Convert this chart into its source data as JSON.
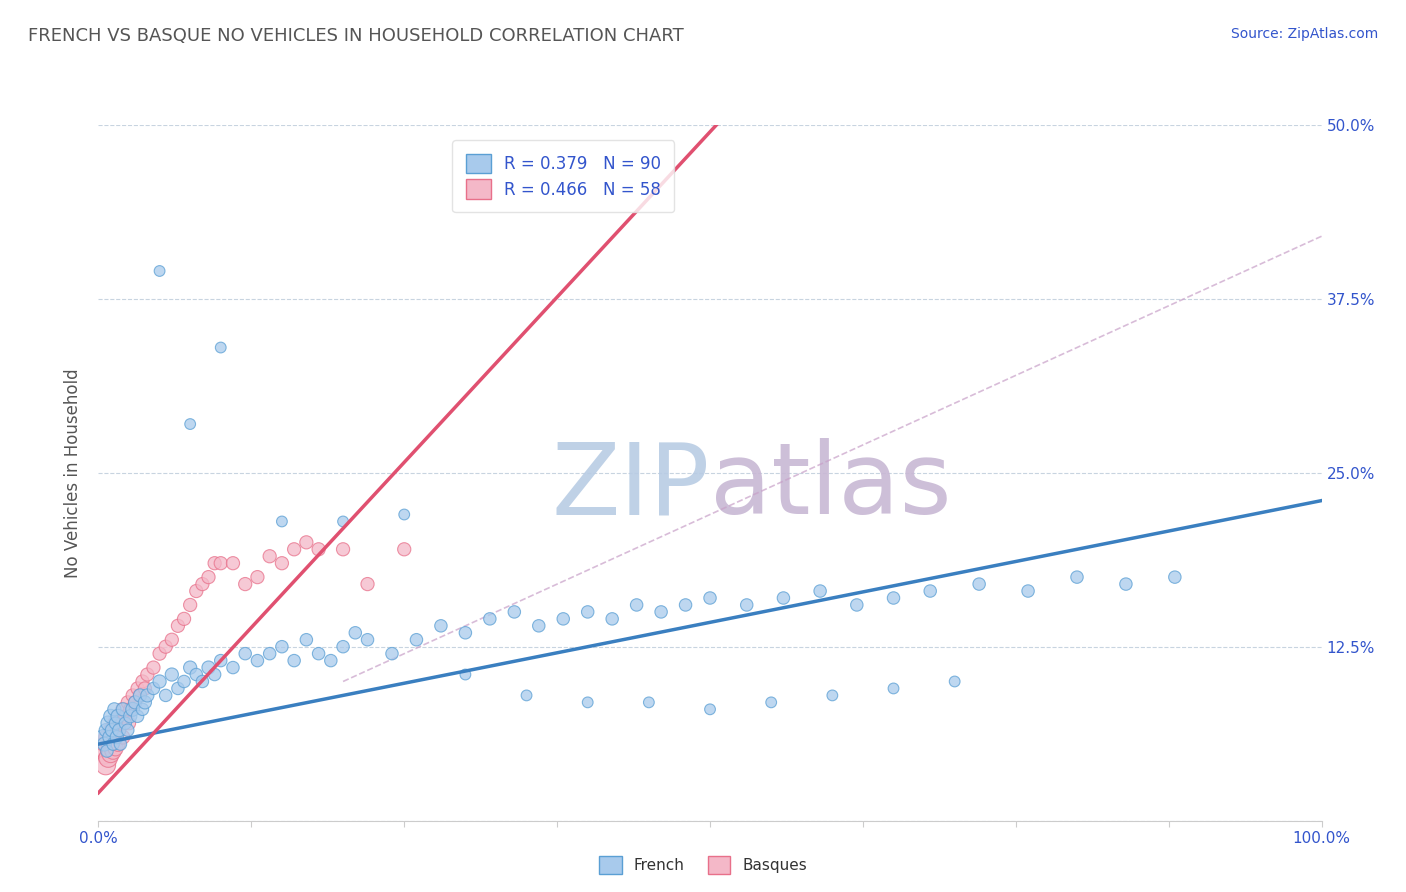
{
  "title": "FRENCH VS BASQUE NO VEHICLES IN HOUSEHOLD CORRELATION CHART",
  "source_text": "Source: ZipAtlas.com",
  "ylabel": "No Vehicles in Household",
  "xlim": [
    0,
    1.0
  ],
  "ylim": [
    0,
    0.5
  ],
  "xticks": [
    0,
    0.125,
    0.25,
    0.375,
    0.5,
    0.625,
    0.75,
    0.875,
    1.0
  ],
  "xticklabels": [
    "0.0%",
    "",
    "",
    "",
    "",
    "",
    "",
    "",
    "100.0%"
  ],
  "ytick_positions": [
    0,
    0.125,
    0.25,
    0.375,
    0.5
  ],
  "yticklabels_right": [
    "",
    "12.5%",
    "25.0%",
    "37.5%",
    "50.0%"
  ],
  "french_R": 0.379,
  "french_N": 90,
  "basque_R": 0.466,
  "basque_N": 58,
  "french_color": "#a8caec",
  "basque_color": "#f4b8c8",
  "french_edge_color": "#5a9fd4",
  "basque_edge_color": "#e8708a",
  "french_line_color": "#3a7fc0",
  "basque_line_color": "#e05070",
  "dash_line_color": "#c8b8d0",
  "legend_text_color": "#3355cc",
  "title_color": "#555555",
  "watermark": "ZIPatlas",
  "watermark_color_zip": "#b8d0e8",
  "watermark_color_atlas": "#c8c0d8",
  "french_x": [
    0.004,
    0.005,
    0.006,
    0.007,
    0.008,
    0.009,
    0.01,
    0.011,
    0.012,
    0.013,
    0.014,
    0.015,
    0.016,
    0.017,
    0.018,
    0.02,
    0.022,
    0.024,
    0.026,
    0.028,
    0.03,
    0.032,
    0.034,
    0.036,
    0.038,
    0.04,
    0.045,
    0.05,
    0.055,
    0.06,
    0.065,
    0.07,
    0.075,
    0.08,
    0.085,
    0.09,
    0.095,
    0.1,
    0.11,
    0.12,
    0.13,
    0.14,
    0.15,
    0.16,
    0.17,
    0.18,
    0.19,
    0.2,
    0.21,
    0.22,
    0.24,
    0.26,
    0.28,
    0.3,
    0.32,
    0.34,
    0.36,
    0.38,
    0.4,
    0.42,
    0.44,
    0.46,
    0.48,
    0.5,
    0.53,
    0.56,
    0.59,
    0.62,
    0.65,
    0.68,
    0.72,
    0.76,
    0.8,
    0.84,
    0.88,
    0.05,
    0.075,
    0.1,
    0.15,
    0.2,
    0.25,
    0.3,
    0.35,
    0.4,
    0.45,
    0.5,
    0.55,
    0.6,
    0.65,
    0.7
  ],
  "french_y": [
    0.06,
    0.055,
    0.065,
    0.05,
    0.07,
    0.06,
    0.075,
    0.065,
    0.055,
    0.08,
    0.07,
    0.06,
    0.075,
    0.065,
    0.055,
    0.08,
    0.07,
    0.065,
    0.075,
    0.08,
    0.085,
    0.075,
    0.09,
    0.08,
    0.085,
    0.09,
    0.095,
    0.1,
    0.09,
    0.105,
    0.095,
    0.1,
    0.11,
    0.105,
    0.1,
    0.11,
    0.105,
    0.115,
    0.11,
    0.12,
    0.115,
    0.12,
    0.125,
    0.115,
    0.13,
    0.12,
    0.115,
    0.125,
    0.135,
    0.13,
    0.12,
    0.13,
    0.14,
    0.135,
    0.145,
    0.15,
    0.14,
    0.145,
    0.15,
    0.145,
    0.155,
    0.15,
    0.155,
    0.16,
    0.155,
    0.16,
    0.165,
    0.155,
    0.16,
    0.165,
    0.17,
    0.165,
    0.175,
    0.17,
    0.175,
    0.395,
    0.285,
    0.34,
    0.215,
    0.215,
    0.22,
    0.105,
    0.09,
    0.085,
    0.085,
    0.08,
    0.085,
    0.09,
    0.095,
    0.1
  ],
  "french_sizes": [
    120,
    100,
    90,
    80,
    110,
    90,
    100,
    90,
    80,
    90,
    80,
    90,
    100,
    90,
    80,
    90,
    80,
    80,
    90,
    100,
    90,
    80,
    90,
    80,
    90,
    90,
    80,
    90,
    80,
    90,
    80,
    80,
    90,
    80,
    80,
    90,
    80,
    80,
    80,
    80,
    80,
    80,
    80,
    80,
    80,
    80,
    80,
    80,
    80,
    80,
    80,
    80,
    80,
    80,
    80,
    80,
    80,
    80,
    80,
    80,
    80,
    80,
    80,
    80,
    80,
    80,
    80,
    80,
    80,
    80,
    80,
    80,
    80,
    80,
    80,
    60,
    60,
    60,
    60,
    60,
    60,
    60,
    60,
    60,
    60,
    60,
    60,
    60,
    60,
    60
  ],
  "basque_x": [
    0.003,
    0.004,
    0.005,
    0.006,
    0.007,
    0.008,
    0.009,
    0.01,
    0.011,
    0.012,
    0.013,
    0.014,
    0.015,
    0.016,
    0.017,
    0.018,
    0.02,
    0.022,
    0.024,
    0.026,
    0.028,
    0.03,
    0.032,
    0.034,
    0.036,
    0.038,
    0.04,
    0.045,
    0.05,
    0.055,
    0.06,
    0.065,
    0.07,
    0.075,
    0.08,
    0.085,
    0.09,
    0.095,
    0.1,
    0.11,
    0.12,
    0.13,
    0.14,
    0.15,
    0.16,
    0.17,
    0.18,
    0.2,
    0.22,
    0.25,
    0.006,
    0.008,
    0.01,
    0.012,
    0.014,
    0.016,
    0.02,
    0.025
  ],
  "basque_y": [
    0.05,
    0.055,
    0.045,
    0.06,
    0.05,
    0.055,
    0.06,
    0.065,
    0.055,
    0.06,
    0.07,
    0.065,
    0.07,
    0.075,
    0.065,
    0.07,
    0.08,
    0.075,
    0.085,
    0.08,
    0.09,
    0.085,
    0.095,
    0.09,
    0.1,
    0.095,
    0.105,
    0.11,
    0.12,
    0.125,
    0.13,
    0.14,
    0.145,
    0.155,
    0.165,
    0.17,
    0.175,
    0.185,
    0.185,
    0.185,
    0.17,
    0.175,
    0.19,
    0.185,
    0.195,
    0.2,
    0.195,
    0.195,
    0.17,
    0.195,
    0.04,
    0.045,
    0.048,
    0.05,
    0.052,
    0.055,
    0.06,
    0.07
  ],
  "basque_sizes": [
    90,
    100,
    80,
    100,
    90,
    100,
    90,
    110,
    90,
    100,
    90,
    100,
    90,
    100,
    90,
    90,
    100,
    90,
    90,
    90,
    90,
    90,
    90,
    90,
    90,
    90,
    90,
    90,
    90,
    90,
    90,
    90,
    90,
    90,
    90,
    90,
    90,
    90,
    90,
    90,
    90,
    90,
    90,
    90,
    90,
    90,
    90,
    90,
    90,
    90,
    200,
    180,
    160,
    140,
    120,
    110,
    100,
    90
  ],
  "french_line_intercept": 0.055,
  "french_line_slope": 0.175,
  "basque_line_intercept": 0.02,
  "basque_line_slope": 0.95,
  "dash_line_x0": 0.2,
  "dash_line_x1": 1.0,
  "dash_line_y0": 0.1,
  "dash_line_y1": 0.42
}
